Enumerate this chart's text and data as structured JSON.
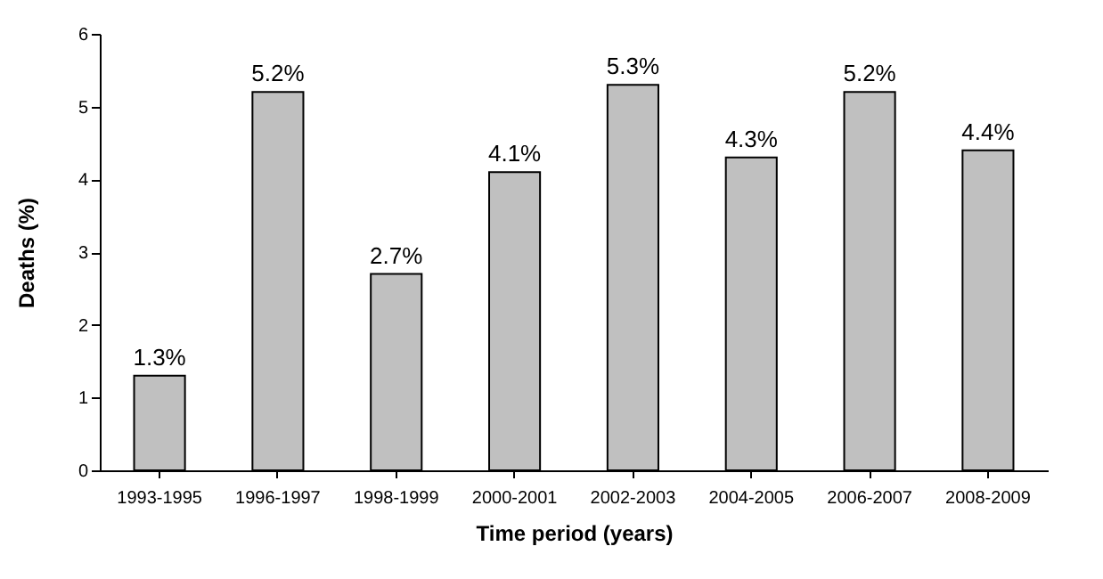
{
  "chart_data": {
    "type": "bar",
    "xlabel": "Time period (years)",
    "ylabel": "Deaths (%)",
    "categories": [
      "1993-1995",
      "1996-1997",
      "1998-1999",
      "2000-2001",
      "2002-2003",
      "2004-2005",
      "2006-2007",
      "2008-2009"
    ],
    "values": [
      1.3,
      5.2,
      2.7,
      4.1,
      5.3,
      4.3,
      5.2,
      4.4
    ],
    "value_labels": [
      "1.3%",
      "5.2%",
      "2.7%",
      "4.1%",
      "5.3%",
      "4.3%",
      "5.2%",
      "4.4%"
    ],
    "color": "#c0c0c0",
    "ylim": [
      0,
      6
    ],
    "yticks": [
      0,
      1,
      2,
      3,
      4,
      5,
      6
    ],
    "grid": false
  }
}
